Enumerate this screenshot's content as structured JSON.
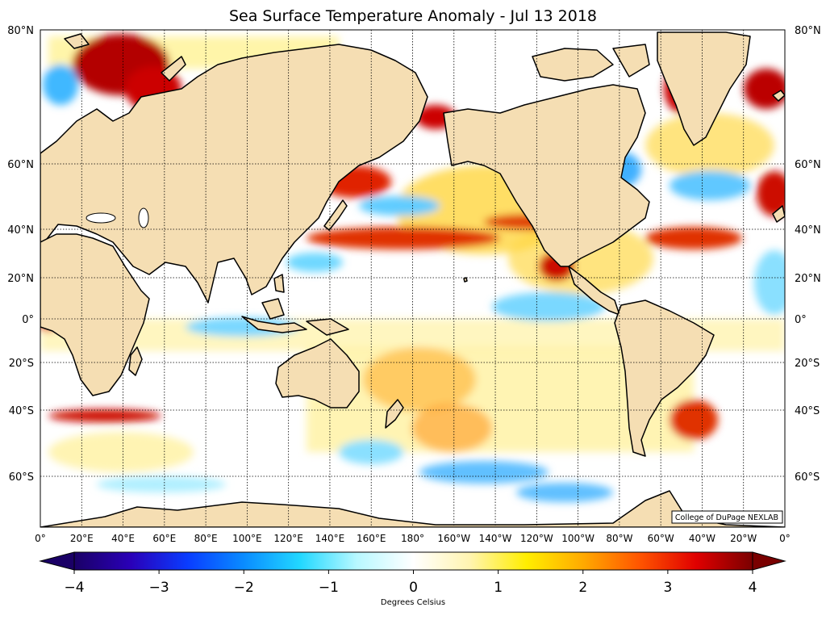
{
  "title": "Sea Surface Temperature Anomaly - Jul 13 2018",
  "credit": "College of DuPage NEXLAB",
  "lat_labels_left": [
    "80°N",
    "60°N",
    "40°N",
    "20°N",
    "0°",
    "20°S",
    "40°S",
    "60°S"
  ],
  "lat_labels_right": [
    "80°N",
    "60°N",
    "40°N",
    "20°N",
    "0°",
    "20°S",
    "40°S",
    "60°S"
  ],
  "lon_labels": [
    "0°",
    "20°E",
    "40°E",
    "60°E",
    "80°E",
    "100°E",
    "120°E",
    "140°E",
    "160°E",
    "180°",
    "160°W",
    "140°W",
    "120°W",
    "100°W",
    "80°W",
    "60°W",
    "40°W",
    "20°W",
    "0°"
  ],
  "colorbar": {
    "min": -4,
    "max": 4,
    "tick_values": [
      -4,
      -3,
      -2,
      -1,
      0,
      1,
      2,
      3,
      4
    ],
    "tick_labels": [
      "−4",
      "−3",
      "−2",
      "−1",
      "0",
      "1",
      "2",
      "3",
      "4"
    ],
    "label": "Degrees Celsius",
    "stops": [
      "#1a0066",
      "#2a00b8",
      "#0a3cff",
      "#0a8cff",
      "#22d8ff",
      "#b8f8ff",
      "#ffffff",
      "#fff4b0",
      "#ffee00",
      "#ffaa00",
      "#ff5500",
      "#e00000",
      "#7a0000"
    ]
  },
  "colors": {
    "land": "#f5deb3",
    "ocean_neutral": "#ffffff",
    "coast": "#000000",
    "grid": "#000000"
  }
}
